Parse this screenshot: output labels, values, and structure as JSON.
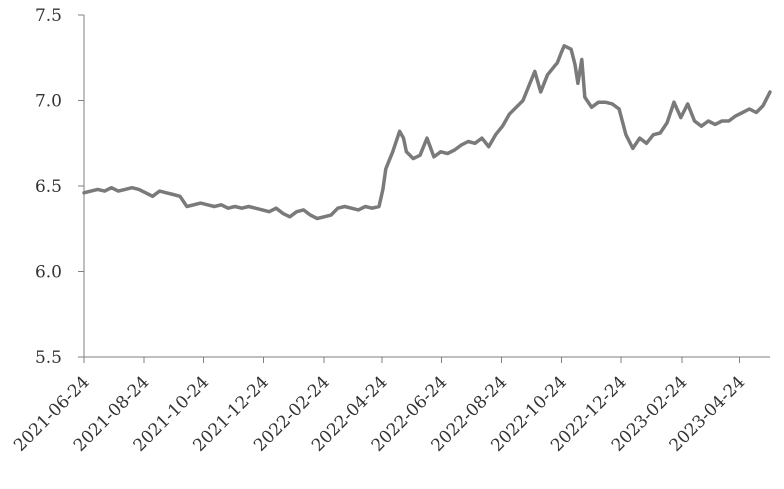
{
  "chart_data": {
    "type": "line",
    "title": "",
    "xlabel": "",
    "ylabel": "",
    "ylim": [
      5.5,
      7.5
    ],
    "grid": false,
    "legend": "none",
    "line_color": "#7a7a7a",
    "y_ticks": [
      "5.5",
      "6.0",
      "6.5",
      "7.0",
      "7.5"
    ],
    "x_ticks": [
      "2021-06-24",
      "2021-08-24",
      "2021-10-24",
      "2021-12-24",
      "2022-02-24",
      "2022-04-24",
      "2022-06-24",
      "2022-08-24",
      "2022-10-24",
      "2022-12-24",
      "2023-02-24",
      "2023-04-24"
    ],
    "series": [
      {
        "x": [
          "2021-06-24",
          "2021-07-01",
          "2021-07-08",
          "2021-07-15",
          "2021-07-22",
          "2021-07-29",
          "2021-08-05",
          "2021-08-12",
          "2021-08-19",
          "2021-08-26",
          "2021-09-02",
          "2021-09-09",
          "2021-09-16",
          "2021-09-23",
          "2021-09-30",
          "2021-10-07",
          "2021-10-14",
          "2021-10-21",
          "2021-10-28",
          "2021-11-04",
          "2021-11-11",
          "2021-11-18",
          "2021-11-25",
          "2021-12-02",
          "2021-12-09",
          "2021-12-16",
          "2021-12-23",
          "2021-12-30",
          "2022-01-06",
          "2022-01-13",
          "2022-01-20",
          "2022-01-27",
          "2022-02-03",
          "2022-02-10",
          "2022-02-17",
          "2022-02-24",
          "2022-03-03",
          "2022-03-10",
          "2022-03-17",
          "2022-03-24",
          "2022-03-31",
          "2022-04-07",
          "2022-04-14",
          "2022-04-21",
          "2022-04-25",
          "2022-04-28",
          "2022-05-05",
          "2022-05-12",
          "2022-05-16",
          "2022-05-19",
          "2022-05-26",
          "2022-06-02",
          "2022-06-09",
          "2022-06-16",
          "2022-06-23",
          "2022-06-30",
          "2022-07-07",
          "2022-07-14",
          "2022-07-21",
          "2022-07-28",
          "2022-08-04",
          "2022-08-11",
          "2022-08-18",
          "2022-08-25",
          "2022-09-01",
          "2022-09-08",
          "2022-09-15",
          "2022-09-22",
          "2022-09-27",
          "2022-10-03",
          "2022-10-10",
          "2022-10-17",
          "2022-10-20",
          "2022-10-24",
          "2022-10-27",
          "2022-11-03",
          "2022-11-07",
          "2022-11-10",
          "2022-11-14",
          "2022-11-17",
          "2022-11-24",
          "2022-12-01",
          "2022-12-08",
          "2022-12-15",
          "2022-12-22",
          "2022-12-29",
          "2023-01-05",
          "2023-01-12",
          "2023-01-19",
          "2023-01-26",
          "2023-02-02",
          "2023-02-09",
          "2023-02-16",
          "2023-02-23",
          "2023-03-02",
          "2023-03-09",
          "2023-03-16",
          "2023-03-23",
          "2023-03-30",
          "2023-04-06",
          "2023-04-13",
          "2023-04-20",
          "2023-04-27",
          "2023-05-04",
          "2023-05-11",
          "2023-05-18",
          "2023-05-25"
        ],
        "values": [
          6.46,
          6.47,
          6.48,
          6.47,
          6.49,
          6.47,
          6.48,
          6.49,
          6.48,
          6.46,
          6.44,
          6.47,
          6.46,
          6.45,
          6.44,
          6.38,
          6.39,
          6.4,
          6.39,
          6.38,
          6.39,
          6.37,
          6.38,
          6.37,
          6.38,
          6.37,
          6.36,
          6.35,
          6.37,
          6.34,
          6.32,
          6.35,
          6.36,
          6.33,
          6.31,
          6.32,
          6.33,
          6.37,
          6.38,
          6.37,
          6.36,
          6.38,
          6.37,
          6.38,
          6.48,
          6.6,
          6.7,
          6.82,
          6.78,
          6.7,
          6.66,
          6.68,
          6.78,
          6.67,
          6.7,
          6.69,
          6.71,
          6.74,
          6.76,
          6.75,
          6.78,
          6.73,
          6.8,
          6.85,
          6.92,
          6.96,
          7.0,
          7.1,
          7.17,
          7.05,
          7.15,
          7.2,
          7.22,
          7.28,
          7.32,
          7.3,
          7.21,
          7.1,
          7.24,
          7.02,
          6.96,
          6.99,
          6.99,
          6.98,
          6.95,
          6.8,
          6.72,
          6.78,
          6.75,
          6.8,
          6.81,
          6.87,
          6.99,
          6.9,
          6.98,
          6.88,
          6.85,
          6.88,
          6.86,
          6.88,
          6.88,
          6.91,
          6.93,
          6.95,
          6.93,
          6.97,
          7.05
        ]
      }
    ]
  }
}
